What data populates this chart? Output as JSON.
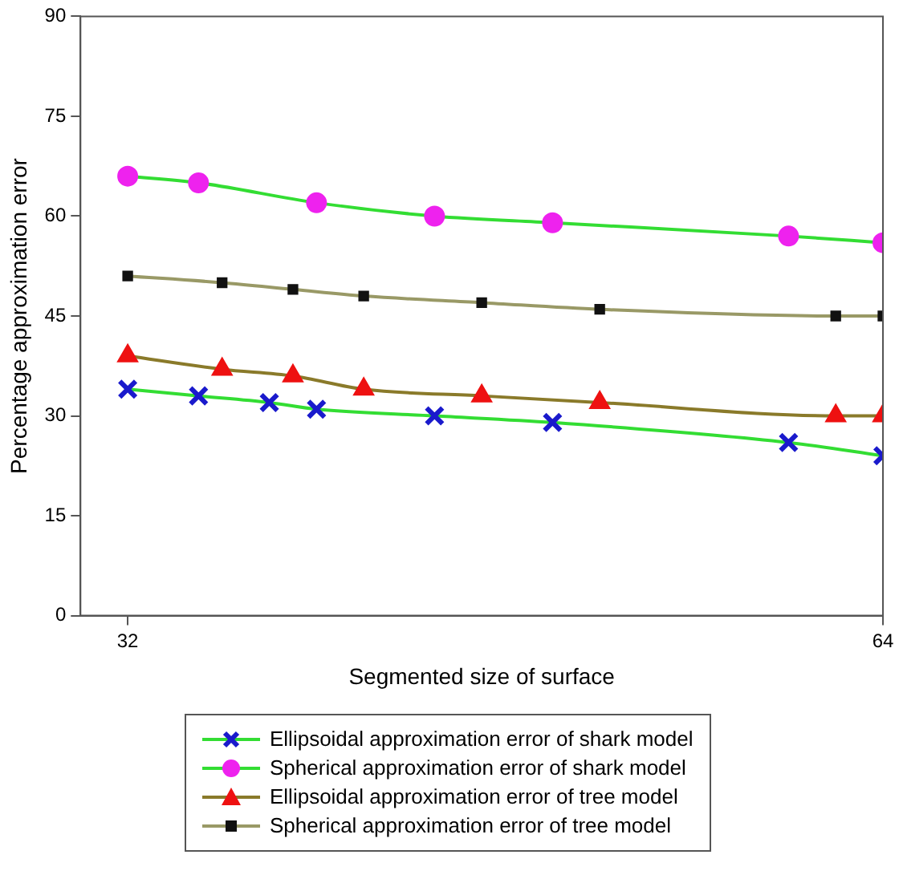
{
  "chart_data": {
    "type": "line",
    "xlabel": "Segmented size of surface",
    "ylabel": "Percentage approximation error",
    "xlim": [
      30,
      64
    ],
    "xticks": [
      32,
      64
    ],
    "ylim": [
      0,
      90
    ],
    "yticks": [
      0,
      15,
      30,
      45,
      60,
      75,
      90
    ],
    "grid": false,
    "legend": "bottom",
    "line_style": "solid",
    "series": [
      {
        "name": "Ellipsoidal approximation error of shark model",
        "color": "#1a1acc",
        "marker": "cross",
        "x": [
          32,
          35,
          38,
          40,
          45,
          50,
          60,
          64
        ],
        "values": [
          34,
          33,
          32,
          31,
          30,
          29,
          26,
          24
        ]
      },
      {
        "name": "Spherical approximation error of shark model",
        "color": "#ee22ee",
        "marker": "circle",
        "x": [
          32,
          35,
          40,
          45,
          50,
          60,
          64
        ],
        "values": [
          66,
          65,
          62,
          60,
          59,
          57,
          56
        ]
      },
      {
        "name": "Ellipsoidal approximation error of tree model",
        "color": "#ee1111",
        "marker": "triangle",
        "x": [
          32,
          36,
          39,
          42,
          47,
          52,
          62,
          64
        ],
        "values": [
          39,
          37,
          36,
          34,
          33,
          32,
          30,
          30
        ]
      },
      {
        "name": "Spherical approximation error of tree model",
        "color": "#111111",
        "marker": "square",
        "x": [
          32,
          36,
          39,
          42,
          47,
          52,
          62,
          64
        ],
        "values": [
          51,
          50,
          49,
          48,
          47,
          46,
          45,
          45
        ]
      }
    ]
  }
}
